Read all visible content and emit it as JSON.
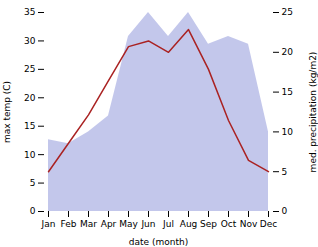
{
  "chart_data": {
    "type": "line",
    "xlabel": "date (month)",
    "ylabel": "max temp (C)",
    "y2label": "med. precipitation (kg/m2)",
    "categories": [
      "Jan",
      "Feb",
      "Mar",
      "Apr",
      "May",
      "Jun",
      "Jul",
      "Aug",
      "Sep",
      "Oct",
      "Nov",
      "Dec"
    ],
    "series": [
      {
        "type": "area",
        "axis": "y2",
        "color": "#b8bde8",
        "values": [
          9,
          8.5,
          10,
          12,
          22,
          25,
          22,
          25,
          21,
          22,
          21,
          10
        ]
      },
      {
        "type": "line",
        "color": "#aa2222",
        "values": [
          7,
          12,
          17,
          23,
          29,
          30,
          28,
          32,
          25,
          16,
          9,
          7
        ]
      }
    ],
    "ylim": [
      0,
      35
    ],
    "yticks": [
      0,
      5,
      10,
      15,
      20,
      25,
      30,
      35
    ],
    "y2lim": [
      0,
      25
    ],
    "y2ticks": [
      0,
      5,
      10,
      15,
      20,
      25
    ]
  }
}
